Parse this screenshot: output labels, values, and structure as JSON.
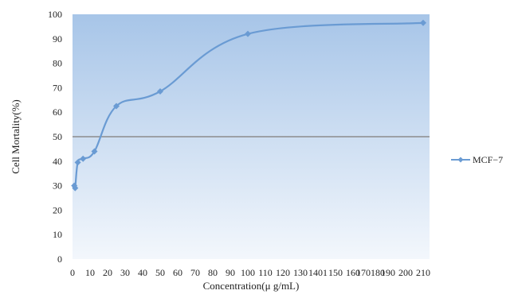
{
  "chart_data": {
    "type": "line",
    "title": "",
    "xlabel": "Concentration(μ g/mL)",
    "ylabel": "Cell Mortality(%)",
    "xlim": [
      0,
      210
    ],
    "ylim": [
      0,
      100
    ],
    "x_tick_labels": [
      "0",
      "10",
      "20",
      "30",
      "40",
      "50",
      "60",
      "70",
      "80",
      "90",
      "100",
      "110",
      "120",
      "130",
      "1401",
      "150",
      "160",
      "170180",
      "190",
      "200",
      "210"
    ],
    "y_tick_labels": [
      "0",
      "10",
      "20",
      "30",
      "40",
      "50",
      "60",
      "70",
      "80",
      "90",
      "100"
    ],
    "reference_line": {
      "y": 50,
      "color": "#8c8c8c"
    },
    "series": [
      {
        "name": "MCF−7",
        "color": "#6a9bd3",
        "x": [
          1,
          1.5,
          3,
          6,
          12.5,
          25,
          50,
          100,
          200
        ],
        "y": [
          30,
          29,
          39.5,
          41,
          44,
          62.5,
          68.5,
          92,
          96.5
        ]
      }
    ],
    "legend_position": "right",
    "background": {
      "top_color": "#a7c5e8",
      "bottom_color": "#f3f7fc"
    }
  }
}
